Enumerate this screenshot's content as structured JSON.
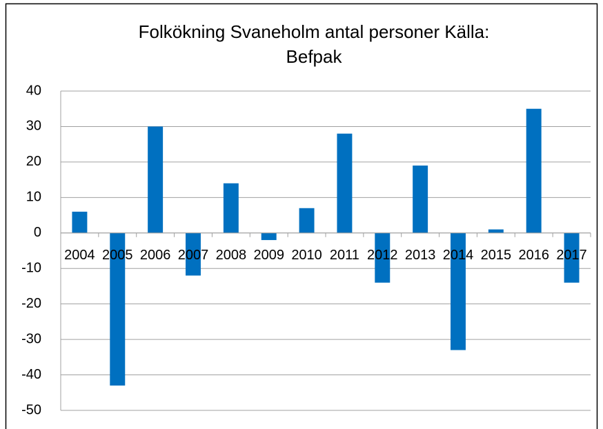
{
  "chart_data": {
    "type": "bar",
    "title": "Folkökning Svaneholm antal personer Källa: Befpak",
    "categories": [
      "2004",
      "2005",
      "2006",
      "2007",
      "2008",
      "2009",
      "2010",
      "2011",
      "2012",
      "2013",
      "2014",
      "2015",
      "2016",
      "2017"
    ],
    "values": [
      6,
      -43,
      30,
      -12,
      14,
      -2,
      7,
      28,
      -14,
      19,
      -33,
      1,
      35,
      -14
    ],
    "color": "#0070c0",
    "ylim": [
      -50,
      40
    ],
    "yticks": [
      -50,
      -40,
      -30,
      -20,
      -10,
      0,
      10,
      20,
      30,
      40
    ],
    "grid": true
  }
}
